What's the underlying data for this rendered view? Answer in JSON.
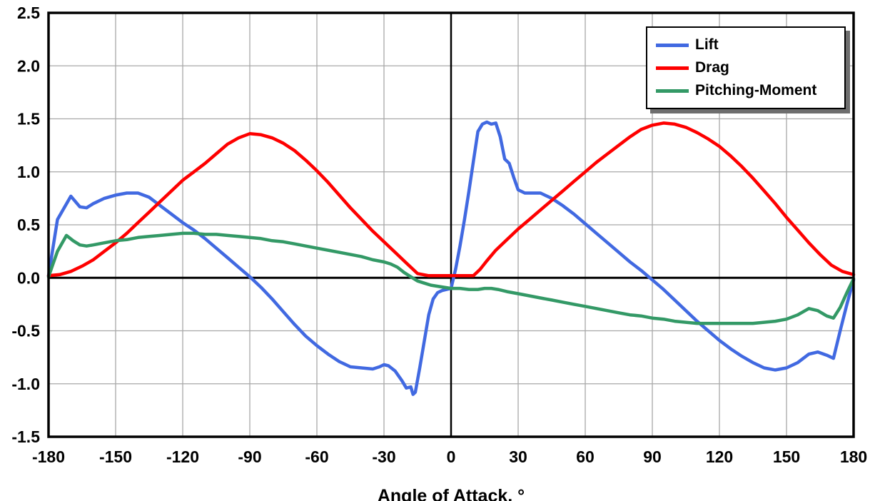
{
  "chart_data": {
    "type": "line",
    "title": "",
    "xlabel": "Angle of Attack, °",
    "ylabel": "",
    "xlim": [
      -180,
      180
    ],
    "ylim": [
      -1.5,
      2.5
    ],
    "x_ticks": [
      -180,
      -150,
      -120,
      -90,
      -60,
      -30,
      0,
      30,
      60,
      90,
      120,
      150,
      180
    ],
    "y_ticks": [
      -1.5,
      -1.0,
      -0.5,
      0.0,
      0.5,
      1.0,
      1.5,
      2.0,
      2.5
    ],
    "grid": true,
    "grid_color": "#a8a8a8",
    "axis_color": "#000000",
    "legend_position": "top-right",
    "series": [
      {
        "name": "Lift",
        "color": "#4169e1",
        "x": [
          -180,
          -176,
          -170,
          -166,
          -163,
          -160,
          -155,
          -150,
          -145,
          -140,
          -135,
          -130,
          -125,
          -120,
          -115,
          -110,
          -105,
          -100,
          -95,
          -90,
          -85,
          -80,
          -75,
          -70,
          -65,
          -60,
          -55,
          -50,
          -45,
          -40,
          -35,
          -32,
          -30,
          -28,
          -25,
          -22,
          -20,
          -18,
          -17,
          -16,
          -14,
          -12,
          -10,
          -8,
          -6,
          -4,
          -2,
          0,
          2,
          4,
          6,
          8,
          10,
          12,
          14,
          16,
          18,
          20,
          22,
          24,
          26,
          28,
          30,
          33,
          36,
          40,
          45,
          50,
          55,
          60,
          65,
          70,
          75,
          80,
          85,
          90,
          95,
          100,
          105,
          110,
          115,
          120,
          125,
          130,
          135,
          140,
          145,
          150,
          155,
          160,
          164,
          168,
          171,
          174,
          177,
          180
        ],
        "y": [
          0.02,
          0.55,
          0.77,
          0.67,
          0.66,
          0.7,
          0.75,
          0.78,
          0.8,
          0.8,
          0.76,
          0.68,
          0.6,
          0.52,
          0.45,
          0.37,
          0.28,
          0.19,
          0.1,
          0.01,
          -0.09,
          -0.2,
          -0.32,
          -0.44,
          -0.55,
          -0.64,
          -0.72,
          -0.79,
          -0.84,
          -0.85,
          -0.86,
          -0.84,
          -0.82,
          -0.83,
          -0.88,
          -0.97,
          -1.04,
          -1.03,
          -1.1,
          -1.08,
          -0.85,
          -0.6,
          -0.35,
          -0.2,
          -0.14,
          -0.12,
          -0.11,
          -0.1,
          0.08,
          0.3,
          0.55,
          0.82,
          1.1,
          1.38,
          1.45,
          1.47,
          1.45,
          1.46,
          1.33,
          1.12,
          1.08,
          0.95,
          0.83,
          0.8,
          0.8,
          0.8,
          0.75,
          0.68,
          0.6,
          0.51,
          0.42,
          0.33,
          0.24,
          0.15,
          0.07,
          -0.02,
          -0.11,
          -0.21,
          -0.31,
          -0.41,
          -0.5,
          -0.59,
          -0.67,
          -0.74,
          -0.8,
          -0.85,
          -0.87,
          -0.85,
          -0.8,
          -0.72,
          -0.7,
          -0.73,
          -0.76,
          -0.5,
          -0.25,
          -0.02
        ]
      },
      {
        "name": "Drag",
        "color": "#fe0000",
        "x": [
          -180,
          -175,
          -170,
          -165,
          -160,
          -155,
          -150,
          -145,
          -140,
          -135,
          -130,
          -125,
          -120,
          -115,
          -110,
          -105,
          -100,
          -95,
          -90,
          -85,
          -80,
          -75,
          -70,
          -65,
          -60,
          -55,
          -50,
          -45,
          -40,
          -35,
          -30,
          -25,
          -20,
          -15,
          -10,
          -5,
          0,
          5,
          10,
          13,
          16,
          20,
          25,
          30,
          35,
          40,
          45,
          50,
          55,
          60,
          65,
          70,
          75,
          80,
          85,
          90,
          95,
          100,
          105,
          110,
          115,
          120,
          125,
          130,
          135,
          140,
          145,
          150,
          155,
          160,
          165,
          170,
          175,
          180
        ],
        "y": [
          0.02,
          0.03,
          0.06,
          0.11,
          0.17,
          0.25,
          0.33,
          0.42,
          0.52,
          0.62,
          0.72,
          0.82,
          0.92,
          1.0,
          1.08,
          1.17,
          1.26,
          1.32,
          1.36,
          1.35,
          1.32,
          1.27,
          1.2,
          1.11,
          1.01,
          0.9,
          0.78,
          0.66,
          0.55,
          0.44,
          0.34,
          0.24,
          0.14,
          0.04,
          0.02,
          0.02,
          0.02,
          0.02,
          0.02,
          0.08,
          0.16,
          0.26,
          0.36,
          0.46,
          0.55,
          0.64,
          0.73,
          0.82,
          0.91,
          1.0,
          1.09,
          1.17,
          1.25,
          1.33,
          1.4,
          1.44,
          1.46,
          1.45,
          1.42,
          1.37,
          1.31,
          1.24,
          1.15,
          1.05,
          0.94,
          0.82,
          0.7,
          0.57,
          0.45,
          0.33,
          0.22,
          0.12,
          0.06,
          0.03
        ]
      },
      {
        "name": "Pitching-Moment",
        "color": "#339966",
        "x": [
          -180,
          -176,
          -172,
          -169,
          -166,
          -163,
          -160,
          -155,
          -150,
          -145,
          -140,
          -135,
          -130,
          -125,
          -120,
          -115,
          -110,
          -105,
          -100,
          -95,
          -90,
          -85,
          -80,
          -75,
          -70,
          -65,
          -60,
          -55,
          -50,
          -45,
          -40,
          -35,
          -30,
          -27,
          -24,
          -21,
          -18,
          -15,
          -12,
          -9,
          -6,
          -3,
          0,
          4,
          8,
          12,
          15,
          18,
          21,
          25,
          30,
          35,
          40,
          45,
          50,
          55,
          60,
          65,
          70,
          75,
          80,
          85,
          90,
          95,
          100,
          105,
          110,
          115,
          120,
          125,
          130,
          135,
          140,
          145,
          150,
          155,
          160,
          164,
          168,
          171,
          174,
          177,
          180
        ],
        "y": [
          0.01,
          0.25,
          0.4,
          0.35,
          0.31,
          0.3,
          0.31,
          0.33,
          0.35,
          0.36,
          0.38,
          0.39,
          0.4,
          0.41,
          0.42,
          0.42,
          0.41,
          0.41,
          0.4,
          0.39,
          0.38,
          0.37,
          0.35,
          0.34,
          0.32,
          0.3,
          0.28,
          0.26,
          0.24,
          0.22,
          0.2,
          0.17,
          0.15,
          0.13,
          0.1,
          0.05,
          0.01,
          -0.03,
          -0.05,
          -0.07,
          -0.08,
          -0.09,
          -0.1,
          -0.1,
          -0.11,
          -0.11,
          -0.1,
          -0.1,
          -0.11,
          -0.13,
          -0.15,
          -0.17,
          -0.19,
          -0.21,
          -0.23,
          -0.25,
          -0.27,
          -0.29,
          -0.31,
          -0.33,
          -0.35,
          -0.36,
          -0.38,
          -0.39,
          -0.41,
          -0.42,
          -0.43,
          -0.43,
          -0.43,
          -0.43,
          -0.43,
          -0.43,
          -0.42,
          -0.41,
          -0.39,
          -0.35,
          -0.29,
          -0.31,
          -0.36,
          -0.38,
          -0.28,
          -0.14,
          -0.01
        ]
      }
    ]
  }
}
